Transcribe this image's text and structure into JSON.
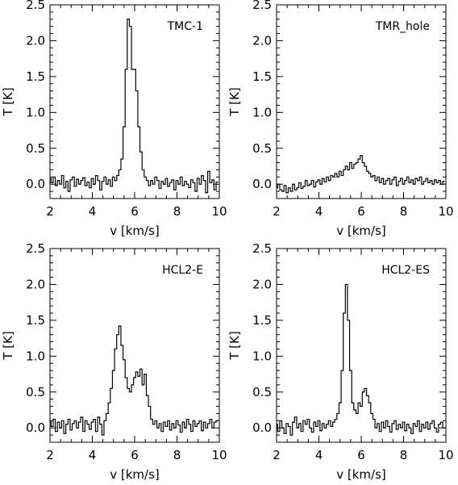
{
  "chart_data": [
    {
      "type": "line",
      "title": "TMC-1",
      "xlabel": "v [km/s]",
      "ylabel": "T [K]",
      "xlim": [
        2,
        10
      ],
      "ylim": [
        -0.2,
        2.5
      ],
      "xticks": [
        "2",
        "4",
        "6",
        "8",
        "10"
      ],
      "yticks": [
        "0.0",
        "0.5",
        "1.0",
        "1.5",
        "2.0",
        "2.5"
      ],
      "step": true,
      "series": [
        {
          "x": [
            2.0,
            2.1,
            2.2,
            2.3,
            2.4,
            2.5,
            2.6,
            2.7,
            2.8,
            2.9,
            3.0,
            3.1,
            3.2,
            3.3,
            3.4,
            3.5,
            3.6,
            3.7,
            3.8,
            3.9,
            4.0,
            4.1,
            4.2,
            4.3,
            4.4,
            4.5,
            4.6,
            4.7,
            4.8,
            4.9,
            5.0,
            5.1,
            5.2,
            5.3,
            5.4,
            5.5,
            5.6,
            5.7,
            5.8,
            5.9,
            6.0,
            6.1,
            6.2,
            6.3,
            6.4,
            6.5,
            6.6,
            6.7,
            6.8,
            6.9,
            7.0,
            7.1,
            7.2,
            7.3,
            7.4,
            7.5,
            7.6,
            7.7,
            7.8,
            7.9,
            8.0,
            8.1,
            8.2,
            8.3,
            8.4,
            8.5,
            8.6,
            8.7,
            8.8,
            8.9,
            9.0,
            9.1,
            9.2,
            9.3,
            9.4,
            9.5,
            9.6,
            9.7,
            9.8,
            9.9
          ],
          "y": [
            0.08,
            0.02,
            0.1,
            -0.02,
            0.05,
            0.0,
            0.12,
            -0.05,
            0.04,
            -0.1,
            0.06,
            0.1,
            -0.03,
            0.07,
            0.0,
            0.05,
            0.09,
            -0.02,
            0.03,
            -0.05,
            0.08,
            0.0,
            0.12,
            0.05,
            -0.08,
            0.04,
            0.1,
            0.0,
            0.06,
            -0.03,
            0.1,
            0.05,
            0.12,
            0.2,
            0.35,
            0.8,
            1.6,
            2.3,
            2.2,
            1.6,
            1.6,
            1.3,
            0.8,
            0.45,
            0.2,
            0.1,
            0.05,
            -0.02,
            0.05,
            0.0,
            0.1,
            0.05,
            -0.06,
            0.04,
            0.0,
            0.08,
            -0.03,
            0.02,
            0.06,
            -0.08,
            0.05,
            0.0,
            0.1,
            -0.02,
            0.04,
            0.0,
            -0.05,
            0.06,
            0.02,
            -0.1,
            0.08,
            0.0,
            0.12,
            0.05,
            -0.12,
            0.18,
            0.02,
            0.06,
            -0.08,
            0.03
          ]
        }
      ]
    },
    {
      "type": "line",
      "title": "TMR_hole",
      "xlabel": "v [km/s]",
      "ylabel": "T [K]",
      "xlim": [
        2,
        10
      ],
      "ylim": [
        -0.2,
        2.5
      ],
      "xticks": [
        "2",
        "4",
        "6",
        "8",
        "10"
      ],
      "yticks": [
        "0.0",
        "0.5",
        "1.0",
        "1.5",
        "2.0",
        "2.5"
      ],
      "step": true,
      "series": [
        {
          "x": [
            2.0,
            2.1,
            2.2,
            2.3,
            2.4,
            2.5,
            2.6,
            2.7,
            2.8,
            2.9,
            3.0,
            3.1,
            3.2,
            3.3,
            3.4,
            3.5,
            3.6,
            3.7,
            3.8,
            3.9,
            4.0,
            4.1,
            4.2,
            4.3,
            4.4,
            4.5,
            4.6,
            4.7,
            4.8,
            4.9,
            5.0,
            5.1,
            5.2,
            5.3,
            5.4,
            5.5,
            5.6,
            5.7,
            5.8,
            5.9,
            6.0,
            6.1,
            6.2,
            6.3,
            6.4,
            6.5,
            6.6,
            6.7,
            6.8,
            6.9,
            7.0,
            7.1,
            7.2,
            7.3,
            7.4,
            7.5,
            7.6,
            7.7,
            7.8,
            7.9,
            8.0,
            8.1,
            8.2,
            8.3,
            8.4,
            8.5,
            8.6,
            8.7,
            8.8,
            8.9,
            9.0,
            9.1,
            9.2,
            9.3,
            9.4,
            9.5,
            9.6,
            9.7,
            9.8,
            9.9
          ],
          "y": [
            -0.05,
            0.0,
            -0.08,
            -0.1,
            -0.02,
            -0.12,
            -0.05,
            -0.1,
            0.0,
            -0.08,
            -0.05,
            0.02,
            -0.06,
            -0.03,
            0.05,
            -0.02,
            0.0,
            0.05,
            -0.04,
            0.03,
            0.06,
            0.0,
            0.08,
            0.03,
            0.1,
            0.05,
            0.12,
            0.1,
            0.15,
            0.1,
            0.18,
            0.12,
            0.2,
            0.25,
            0.2,
            0.3,
            0.22,
            0.28,
            0.3,
            0.35,
            0.4,
            0.3,
            0.25,
            0.18,
            0.15,
            0.1,
            0.12,
            0.05,
            0.1,
            0.02,
            0.08,
            0.0,
            0.05,
            0.08,
            0.0,
            0.06,
            0.1,
            -0.02,
            0.04,
            0.08,
            0.0,
            0.05,
            0.1,
            0.02,
            0.06,
            0.0,
            0.08,
            0.05,
            0.1,
            0.0,
            0.04,
            0.08,
            0.02,
            0.05,
            0.0,
            0.06,
            0.02,
            0.05,
            0.0,
            0.04
          ]
        }
      ]
    },
    {
      "type": "line",
      "title": "HCL2-E",
      "xlabel": "v [km/s]",
      "ylabel": "T [K]",
      "xlim": [
        2,
        10
      ],
      "ylim": [
        -0.2,
        2.5
      ],
      "xticks": [
        "2",
        "4",
        "6",
        "8",
        "10"
      ],
      "yticks": [
        "0.0",
        "0.5",
        "1.0",
        "1.5",
        "2.0",
        "2.5"
      ],
      "step": true,
      "series": [
        {
          "x": [
            2.0,
            2.1,
            2.2,
            2.3,
            2.4,
            2.5,
            2.6,
            2.7,
            2.8,
            2.9,
            3.0,
            3.1,
            3.2,
            3.3,
            3.4,
            3.5,
            3.6,
            3.7,
            3.8,
            3.9,
            4.0,
            4.1,
            4.2,
            4.3,
            4.4,
            4.5,
            4.6,
            4.7,
            4.8,
            4.9,
            5.0,
            5.1,
            5.2,
            5.3,
            5.4,
            5.5,
            5.6,
            5.7,
            5.8,
            5.9,
            6.0,
            6.1,
            6.2,
            6.3,
            6.4,
            6.5,
            6.6,
            6.7,
            6.8,
            6.9,
            7.0,
            7.1,
            7.2,
            7.3,
            7.4,
            7.5,
            7.6,
            7.7,
            7.8,
            7.9,
            8.0,
            8.1,
            8.2,
            8.3,
            8.4,
            8.5,
            8.6,
            8.7,
            8.8,
            8.9,
            9.0,
            9.1,
            9.2,
            9.3,
            9.4,
            9.5,
            9.6,
            9.7,
            9.8,
            9.9
          ],
          "y": [
            0.1,
            0.02,
            0.12,
            -0.05,
            0.08,
            0.0,
            0.1,
            -0.08,
            0.05,
            0.12,
            -0.03,
            0.06,
            0.1,
            0.0,
            0.08,
            0.15,
            -0.05,
            0.1,
            0.05,
            -0.02,
            0.08,
            0.12,
            -0.05,
            0.15,
            0.05,
            -0.1,
            0.1,
            0.2,
            0.35,
            0.55,
            0.8,
            1.1,
            1.3,
            1.42,
            1.15,
            0.95,
            0.7,
            0.55,
            0.5,
            0.6,
            0.7,
            0.78,
            0.72,
            0.82,
            0.6,
            0.75,
            0.45,
            0.3,
            0.12,
            0.05,
            0.1,
            0.0,
            0.06,
            -0.05,
            0.08,
            0.02,
            0.1,
            -0.03,
            0.06,
            0.0,
            0.1,
            0.04,
            -0.06,
            0.08,
            0.0,
            0.12,
            0.05,
            -0.05,
            0.1,
            0.02,
            0.06,
            0.1,
            -0.04,
            0.08,
            0.0,
            0.06,
            0.12,
            0.0,
            0.08,
            0.1
          ]
        }
      ]
    },
    {
      "type": "line",
      "title": "HCL2-ES",
      "xlabel": "v [km/s]",
      "ylabel": "T [K]",
      "xlim": [
        2,
        10
      ],
      "ylim": [
        -0.2,
        2.5
      ],
      "xticks": [
        "2",
        "4",
        "6",
        "8",
        "10"
      ],
      "yticks": [
        "0.0",
        "0.5",
        "1.0",
        "1.5",
        "2.0",
        "2.5"
      ],
      "step": true,
      "series": [
        {
          "x": [
            2.0,
            2.1,
            2.2,
            2.3,
            2.4,
            2.5,
            2.6,
            2.7,
            2.8,
            2.9,
            3.0,
            3.1,
            3.2,
            3.3,
            3.4,
            3.5,
            3.6,
            3.7,
            3.8,
            3.9,
            4.0,
            4.1,
            4.2,
            4.3,
            4.4,
            4.5,
            4.6,
            4.7,
            4.8,
            4.9,
            5.0,
            5.1,
            5.2,
            5.3,
            5.4,
            5.5,
            5.6,
            5.7,
            5.8,
            5.9,
            6.0,
            6.1,
            6.2,
            6.3,
            6.4,
            6.5,
            6.6,
            6.7,
            6.8,
            6.9,
            7.0,
            7.1,
            7.2,
            7.3,
            7.4,
            7.5,
            7.6,
            7.7,
            7.8,
            7.9,
            8.0,
            8.1,
            8.2,
            8.3,
            8.4,
            8.5,
            8.6,
            8.7,
            8.8,
            8.9,
            9.0,
            9.1,
            9.2,
            9.3,
            9.4,
            9.5,
            9.6,
            9.7,
            9.8,
            9.9
          ],
          "y": [
            0.05,
            -0.05,
            0.1,
            0.0,
            -0.08,
            0.06,
            0.02,
            -0.1,
            0.08,
            0.15,
            0.0,
            0.06,
            -0.05,
            0.1,
            0.05,
            0.12,
            0.0,
            -0.06,
            0.08,
            0.02,
            0.1,
            -0.04,
            0.06,
            0.0,
            0.05,
            0.1,
            0.02,
            0.08,
            0.12,
            0.2,
            0.35,
            0.8,
            1.6,
            2.0,
            1.5,
            0.8,
            0.35,
            0.25,
            0.2,
            0.35,
            0.3,
            0.5,
            0.55,
            0.45,
            0.35,
            0.2,
            0.12,
            0.0,
            0.06,
            -0.05,
            0.08,
            0.0,
            0.1,
            0.02,
            -0.06,
            0.06,
            0.1,
            -0.02,
            0.05,
            0.0,
            0.08,
            -0.04,
            0.05,
            0.0,
            -0.08,
            0.06,
            0.02,
            0.1,
            -0.05,
            0.05,
            0.0,
            0.08,
            -0.02,
            0.06,
            0.1,
            0.0,
            -0.06,
            0.05,
            0.08,
            0.0
          ]
        }
      ]
    }
  ]
}
